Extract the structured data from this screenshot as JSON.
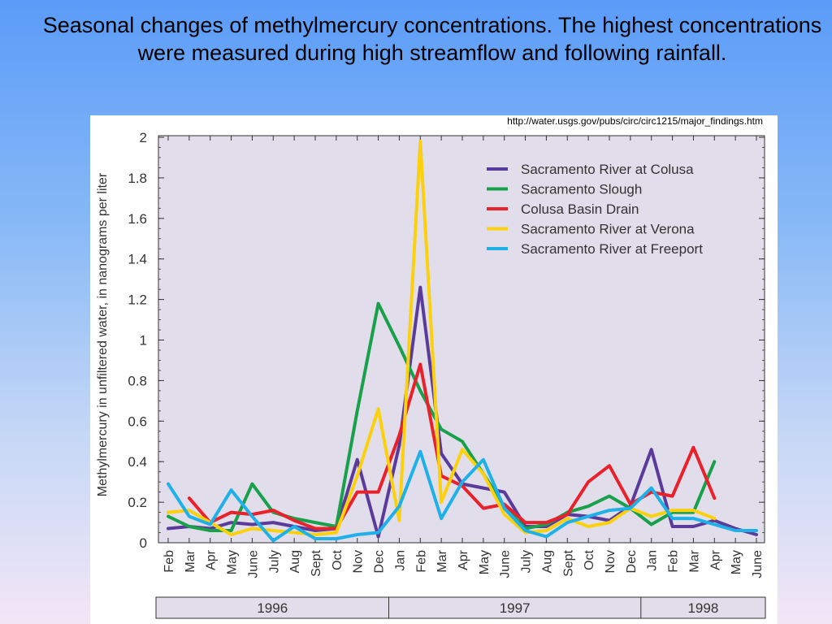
{
  "slide": {
    "title": "Seasonal changes of methylmercury concentrations. The highest concentrations were measured during high streamflow and following rainfall."
  },
  "figure": {
    "source_url": "http://water.usgs.gov/pubs/circ/circ1215/major_findings.htm"
  },
  "chart_data": {
    "type": "line",
    "title": "",
    "xlabel": "",
    "ylabel": "Methylmercury in unfiltered water, in nanograms per liter",
    "ylim": [
      0,
      2
    ],
    "yticks": [
      0,
      0.2,
      0.4,
      0.6,
      0.8,
      1,
      1.2,
      1.4,
      1.6,
      1.8,
      2
    ],
    "grid": false,
    "legend_position": "top-right",
    "plot_background": "#e1ddeb",
    "categories": [
      "Feb",
      "Mar",
      "Apr",
      "May",
      "June",
      "July",
      "Aug",
      "Sept",
      "Oct",
      "Nov",
      "Dec",
      "Jan",
      "Feb",
      "Mar",
      "Apr",
      "May",
      "June",
      "July",
      "Aug",
      "Sept",
      "Oct",
      "Nov",
      "Dec",
      "Jan",
      "Feb",
      "Mar",
      "Apr",
      "May",
      "June"
    ],
    "years": [
      {
        "label": "1996",
        "start": 0,
        "end": 10
      },
      {
        "label": "1997",
        "start": 11,
        "end": 22
      },
      {
        "label": "1998",
        "start": 23,
        "end": 28
      }
    ],
    "series": [
      {
        "name": "Sacramento River at Colusa",
        "color": "#5b3b9a",
        "values": [
          0.07,
          0.08,
          0.07,
          0.1,
          0.09,
          0.1,
          0.08,
          0.06,
          0.07,
          0.41,
          0.03,
          0.48,
          1.26,
          0.44,
          0.29,
          0.27,
          0.25,
          0.08,
          0.08,
          0.14,
          0.13,
          0.11,
          0.18,
          0.46,
          0.08,
          0.08,
          0.11,
          0.07,
          0.04
        ]
      },
      {
        "name": "Sacramento Slough",
        "color": "#19a04b",
        "values": [
          0.13,
          0.08,
          0.06,
          0.06,
          0.29,
          0.15,
          0.12,
          0.1,
          0.08,
          0.65,
          1.18,
          0.97,
          0.75,
          0.56,
          0.5,
          0.34,
          0.18,
          0.07,
          0.09,
          0.15,
          0.18,
          0.23,
          0.17,
          0.09,
          0.15,
          0.15,
          0.4,
          null,
          null
        ]
      },
      {
        "name": "Colusa Basin Drain",
        "color": "#e8212b",
        "values": [
          null,
          0.22,
          0.1,
          0.15,
          0.14,
          0.16,
          0.11,
          0.07,
          0.07,
          0.25,
          0.25,
          0.53,
          0.88,
          0.33,
          0.28,
          0.17,
          0.19,
          0.1,
          0.1,
          0.14,
          0.3,
          0.38,
          0.19,
          0.25,
          0.23,
          0.47,
          0.22,
          null,
          null
        ]
      },
      {
        "name": "Sacramento River at Verona",
        "color": "#fbd10e",
        "values": [
          0.15,
          0.16,
          0.1,
          0.04,
          0.07,
          0.06,
          0.05,
          0.04,
          0.05,
          0.33,
          0.66,
          0.11,
          1.98,
          0.2,
          0.46,
          0.34,
          0.14,
          0.05,
          0.06,
          0.12,
          0.08,
          0.1,
          0.17,
          0.13,
          0.16,
          0.16,
          0.12,
          null,
          null
        ]
      },
      {
        "name": "Sacramento River at Freeport",
        "color": "#1fb0e8",
        "values": [
          0.29,
          0.13,
          0.09,
          0.26,
          0.13,
          0.01,
          0.08,
          0.02,
          0.02,
          0.04,
          0.05,
          0.18,
          0.45,
          0.12,
          0.3,
          0.41,
          0.17,
          0.06,
          0.03,
          0.1,
          0.13,
          0.16,
          0.17,
          0.27,
          0.12,
          0.12,
          0.09,
          0.06,
          0.06
        ]
      }
    ]
  }
}
